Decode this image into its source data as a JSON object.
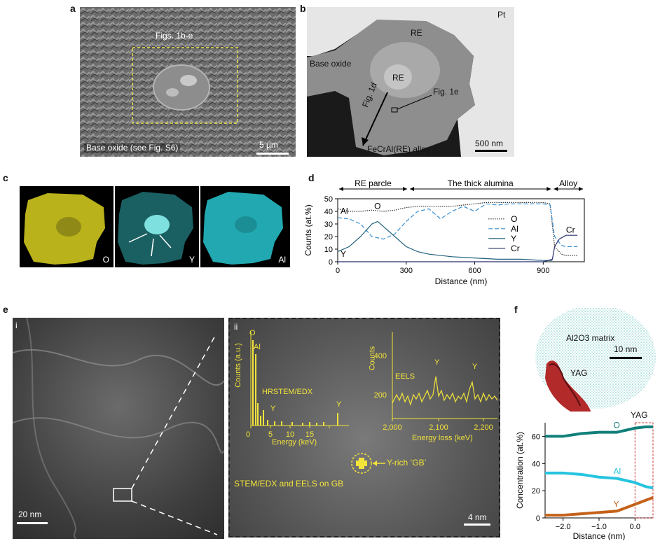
{
  "panels": {
    "a": {
      "label": "a",
      "box_label": "Figs. 1b-e",
      "caption": "Base oxide (see Fig. S6)",
      "scale": "5 µm"
    },
    "b": {
      "label": "b",
      "pt": "Pt",
      "re1": "RE",
      "re2": "RE",
      "base_oxide": "Base oxide",
      "fig1d": "Fig. 1d",
      "fig1e": "Fig. 1e",
      "alloy": "FeCrAl(RE) alloy",
      "scale": "500 nm"
    },
    "c": {
      "label": "c",
      "maps": [
        "O",
        "Y",
        "Al"
      ],
      "colors": {
        "O": "#b9b21a",
        "Y": "#1e6d70",
        "Al": "#21a8b0"
      }
    },
    "e": {
      "label": "e",
      "sub_i": "i",
      "sub_ii": "ii",
      "scale_i": "20 nm",
      "scale_ii": "4 nm",
      "edx_ylabel": "Counts (a.u.)",
      "edx_xlabel": "Energy (keV)",
      "edx_title": "HRSTEM/EDX",
      "edx_peaks": [
        "O",
        "Al",
        "Y",
        "Y"
      ],
      "eels_ylabel": "Counts",
      "eels_xlabel": "Energy loss (keV)",
      "eels_title": "EELS",
      "eels_peaks": [
        "Y",
        "Y"
      ],
      "y_rich": "Y-rich ‘GB’",
      "stem_caption": "STEM/EDX and EELS on GB"
    },
    "f": {
      "label": "f",
      "matrix": "Al2O3 matrix",
      "yag": "YAG",
      "scale": "10 nm",
      "yag_label": "YAG"
    }
  },
  "chart_data": [
    {
      "type": "line",
      "panel": "d",
      "xlabel": "Distance (nm)",
      "ylabel": "Counts (at.%)",
      "xlim": [
        0,
        1080
      ],
      "ylim": [
        0,
        50
      ],
      "xticks": [
        0,
        300,
        600,
        900
      ],
      "yticks": [
        0,
        10,
        20,
        30,
        40,
        50
      ],
      "regions": [
        {
          "label": "RE parcle",
          "from": 0,
          "to": 310
        },
        {
          "label": "The thick alumina",
          "from": 310,
          "to": 940
        },
        {
          "label": "Alloy",
          "from": 940,
          "to": 1080
        }
      ],
      "annotations": [
        "Al",
        "O",
        "Y",
        "Cr"
      ],
      "series": [
        {
          "name": "O",
          "style": "dotted",
          "color": "#333333",
          "x": [
            0,
            50,
            100,
            150,
            200,
            250,
            300,
            350,
            400,
            450,
            500,
            550,
            600,
            650,
            700,
            750,
            800,
            850,
            900,
            930,
            950,
            980,
            1000,
            1050
          ],
          "y": [
            42,
            40,
            40,
            41,
            40,
            41,
            43,
            44,
            44,
            44,
            44,
            45,
            46,
            47,
            47,
            47,
            47,
            47,
            47,
            46,
            12,
            6,
            5,
            5
          ]
        },
        {
          "name": "Al",
          "style": "dashed",
          "color": "#3a8fd0",
          "x": [
            0,
            50,
            100,
            150,
            200,
            250,
            300,
            350,
            400,
            450,
            500,
            550,
            600,
            650,
            700,
            750,
            800,
            850,
            900,
            930,
            950,
            980,
            1000,
            1050
          ],
          "y": [
            35,
            34,
            30,
            20,
            18,
            22,
            32,
            40,
            42,
            34,
            40,
            44,
            40,
            46,
            45,
            46,
            46,
            46,
            46,
            45,
            20,
            13,
            12,
            12
          ]
        },
        {
          "name": "Y",
          "style": "solid",
          "color": "#1e5f7a",
          "x": [
            0,
            50,
            100,
            150,
            175,
            200,
            250,
            300,
            350,
            400,
            500,
            600,
            700,
            800,
            900,
            940
          ],
          "y": [
            8,
            12,
            20,
            30,
            32,
            28,
            20,
            12,
            8,
            6,
            4,
            3,
            2,
            2,
            1,
            1
          ]
        },
        {
          "name": "Cr",
          "style": "solid",
          "color": "#2a2f6e",
          "x": [
            0,
            900,
            940,
            950,
            970,
            1000,
            1050
          ],
          "y": [
            0,
            0,
            2,
            12,
            18,
            21,
            21
          ]
        }
      ]
    },
    {
      "type": "line",
      "panel": "f",
      "xlabel": "Distance (nm)",
      "ylabel": "Concentration (at.%)",
      "xlim": [
        -2.5,
        0.5
      ],
      "ylim": [
        0,
        70
      ],
      "xticks": [
        -2.0,
        -1.0,
        0.0
      ],
      "yticks": [
        0,
        20,
        40,
        60
      ],
      "series": [
        {
          "name": "O",
          "color": "#117f7a",
          "x": [
            -2.5,
            -2.0,
            -1.5,
            -1.0,
            -0.5,
            0.0,
            0.3,
            0.5
          ],
          "y": [
            60,
            60,
            62,
            63,
            63,
            66,
            67,
            67
          ]
        },
        {
          "name": "Al",
          "color": "#26c4e0",
          "x": [
            -2.5,
            -2.0,
            -1.5,
            -1.0,
            -0.5,
            0.0,
            0.3,
            0.5
          ],
          "y": [
            33,
            33,
            32,
            30,
            29,
            26,
            23,
            22
          ]
        },
        {
          "name": "Y",
          "color": "#c4621a",
          "x": [
            -2.5,
            -2.0,
            -1.5,
            -1.0,
            -0.5,
            0.0,
            0.3,
            0.5
          ],
          "y": [
            2,
            2,
            3,
            4,
            5,
            10,
            13,
            15
          ]
        }
      ]
    }
  ]
}
